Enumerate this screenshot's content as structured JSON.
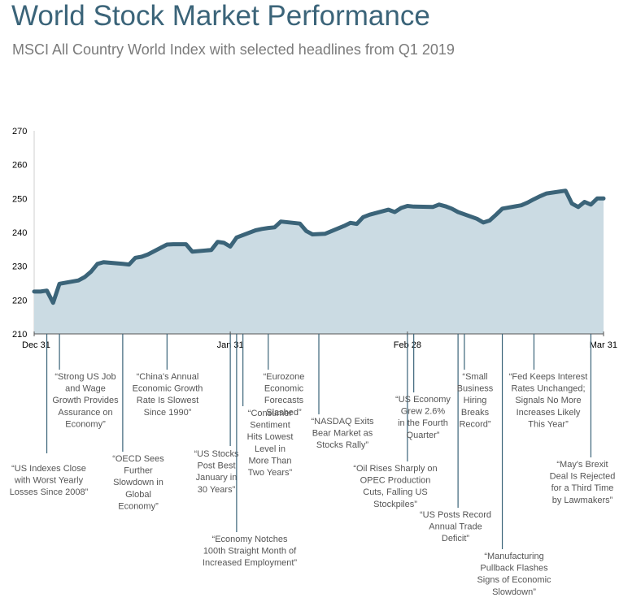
{
  "title": "World Stock Market Performance",
  "subtitle": "MSCI All Country World Index with selected headlines from Q1 2019",
  "colors": {
    "title": "#3b6479",
    "line": "#3b6479",
    "area": "#cbdbe3",
    "annotation_text": "#555555",
    "leader": "#3b6479"
  },
  "chart_data": {
    "type": "area",
    "ylim": [
      210,
      270
    ],
    "yticks": [
      210,
      220,
      230,
      240,
      250,
      260,
      270
    ],
    "x_start": "2018-12-31",
    "x_end": "2019-03-31",
    "xticks": [
      {
        "date": "2018-12-31",
        "label": "Dec 31"
      },
      {
        "date": "2019-01-31",
        "label": "Jan 31"
      },
      {
        "date": "2019-02-28",
        "label": "Feb 28"
      },
      {
        "date": "2019-03-31",
        "label": "Mar 31"
      }
    ],
    "series": [
      {
        "points": [
          [
            "2018-12-31",
            222.5
          ],
          [
            "2019-01-01",
            222.5
          ],
          [
            "2019-01-02",
            222.8
          ],
          [
            "2019-01-03",
            219.2
          ],
          [
            "2019-01-04",
            224.8
          ],
          [
            "2019-01-07",
            225.8
          ],
          [
            "2019-01-08",
            226.8
          ],
          [
            "2019-01-09",
            228.4
          ],
          [
            "2019-01-10",
            230.7
          ],
          [
            "2019-01-11",
            231.2
          ],
          [
            "2019-01-14",
            230.7
          ],
          [
            "2019-01-15",
            230.5
          ],
          [
            "2019-01-16",
            232.5
          ],
          [
            "2019-01-17",
            232.8
          ],
          [
            "2019-01-18",
            233.5
          ],
          [
            "2019-01-21",
            236.4
          ],
          [
            "2019-01-22",
            236.5
          ],
          [
            "2019-01-23",
            236.5
          ],
          [
            "2019-01-24",
            236.5
          ],
          [
            "2019-01-25",
            234.3
          ],
          [
            "2019-01-28",
            234.8
          ],
          [
            "2019-01-29",
            237.2
          ],
          [
            "2019-01-30",
            236.9
          ],
          [
            "2019-01-31",
            235.8
          ],
          [
            "2019-02-01",
            238.5
          ],
          [
            "2019-02-04",
            240.6
          ],
          [
            "2019-02-05",
            241.0
          ],
          [
            "2019-02-06",
            241.3
          ],
          [
            "2019-02-07",
            241.5
          ],
          [
            "2019-02-08",
            243.2
          ],
          [
            "2019-02-11",
            242.6
          ],
          [
            "2019-02-12",
            240.4
          ],
          [
            "2019-02-13",
            239.4
          ],
          [
            "2019-02-14",
            239.5
          ],
          [
            "2019-02-15",
            239.6
          ],
          [
            "2019-02-18",
            241.9
          ],
          [
            "2019-02-19",
            242.8
          ],
          [
            "2019-02-20",
            242.5
          ],
          [
            "2019-02-21",
            244.5
          ],
          [
            "2019-02-22",
            245.2
          ],
          [
            "2019-02-25",
            246.7
          ],
          [
            "2019-02-26",
            246.0
          ],
          [
            "2019-02-27",
            247.2
          ],
          [
            "2019-02-28",
            247.8
          ],
          [
            "2019-03-01",
            247.6
          ],
          [
            "2019-03-04",
            247.5
          ],
          [
            "2019-03-05",
            248.2
          ],
          [
            "2019-03-06",
            247.7
          ],
          [
            "2019-03-07",
            247.0
          ],
          [
            "2019-03-08",
            246.0
          ],
          [
            "2019-03-11",
            244.0
          ],
          [
            "2019-03-12",
            242.9
          ],
          [
            "2019-03-13",
            243.5
          ],
          [
            "2019-03-14",
            245.2
          ],
          [
            "2019-03-15",
            247.0
          ],
          [
            "2019-03-18",
            248.0
          ],
          [
            "2019-03-19",
            248.8
          ],
          [
            "2019-03-20",
            249.8
          ],
          [
            "2019-03-21",
            250.7
          ],
          [
            "2019-03-22",
            251.5
          ],
          [
            "2019-03-25",
            252.3
          ],
          [
            "2019-03-26",
            248.5
          ],
          [
            "2019-03-27",
            247.5
          ],
          [
            "2019-03-28",
            249.0
          ],
          [
            "2019-03-29",
            248.2
          ],
          [
            "2019-03-30",
            250.0
          ],
          [
            "2019-03-31",
            250.0
          ]
        ]
      }
    ],
    "annotations": [
      {
        "date": "2019-01-02",
        "text": [
          "“US Indexes Close",
          "with Worst Yearly",
          "Losses Since 2008”"
        ]
      },
      {
        "date": "2019-01-04",
        "text": [
          "“Strong US Job",
          "and Wage",
          "Growth Provides",
          "Assurance on",
          "Economy”"
        ]
      },
      {
        "date": "2019-01-14",
        "text": [
          "“OECD Sees",
          "Further",
          "Slowdown in",
          "Global",
          "Economy”"
        ]
      },
      {
        "date": "2019-01-21",
        "text": [
          "“China's Annual",
          "Economic Growth",
          "Rate Is Slowest",
          "Since 1990”"
        ]
      },
      {
        "date": "2019-01-31",
        "text": [
          "“US Stocks",
          "Post Best",
          "January in",
          "30 Years”"
        ]
      },
      {
        "date": "2019-02-01",
        "text": [
          "“Economy Notches",
          "100th Straight Month of",
          "Increased Employment”"
        ]
      },
      {
        "date": "2019-02-02",
        "text": [
          "“Consumer",
          "Sentiment",
          "Hits Lowest",
          "Level in",
          "More Than",
          "Two Years”"
        ]
      },
      {
        "date": "2019-02-06",
        "text": [
          "“Eurozone",
          "Economic",
          "Forecasts",
          "Slashed”"
        ]
      },
      {
        "date": "2019-02-14",
        "text": [
          "“NASDAQ Exits",
          "Bear Market as",
          "Stocks Rally”"
        ]
      },
      {
        "date": "2019-02-28",
        "text": [
          "“Oil Rises Sharply on",
          "OPEC Production",
          "Cuts, Falling US",
          "Stockpiles”"
        ]
      },
      {
        "date": "2019-03-01",
        "text": [
          "“US Economy",
          "Grew 2.6%",
          "in the Fourth",
          "Quarter”"
        ]
      },
      {
        "date": "2019-03-08",
        "text": [
          "“US Posts Record",
          "Annual Trade",
          "Deficit”"
        ]
      },
      {
        "date": "2019-03-09",
        "text": [
          "“Small",
          "Business",
          "Hiring",
          "Breaks",
          "Record”"
        ]
      },
      {
        "date": "2019-03-15",
        "text": [
          "“Manufacturing",
          "Pullback Flashes",
          "Signs of Economic",
          "Slowdown”"
        ]
      },
      {
        "date": "2019-03-20",
        "text": [
          "“Fed Keeps Interest",
          "Rates Unchanged;",
          "Signals No More",
          "Increases Likely",
          "This Year”"
        ]
      },
      {
        "date": "2019-03-29",
        "text": [
          "“May's Brexit",
          "Deal Is Rejected",
          "for a Third Time",
          "by Lawmakers”"
        ]
      }
    ]
  }
}
